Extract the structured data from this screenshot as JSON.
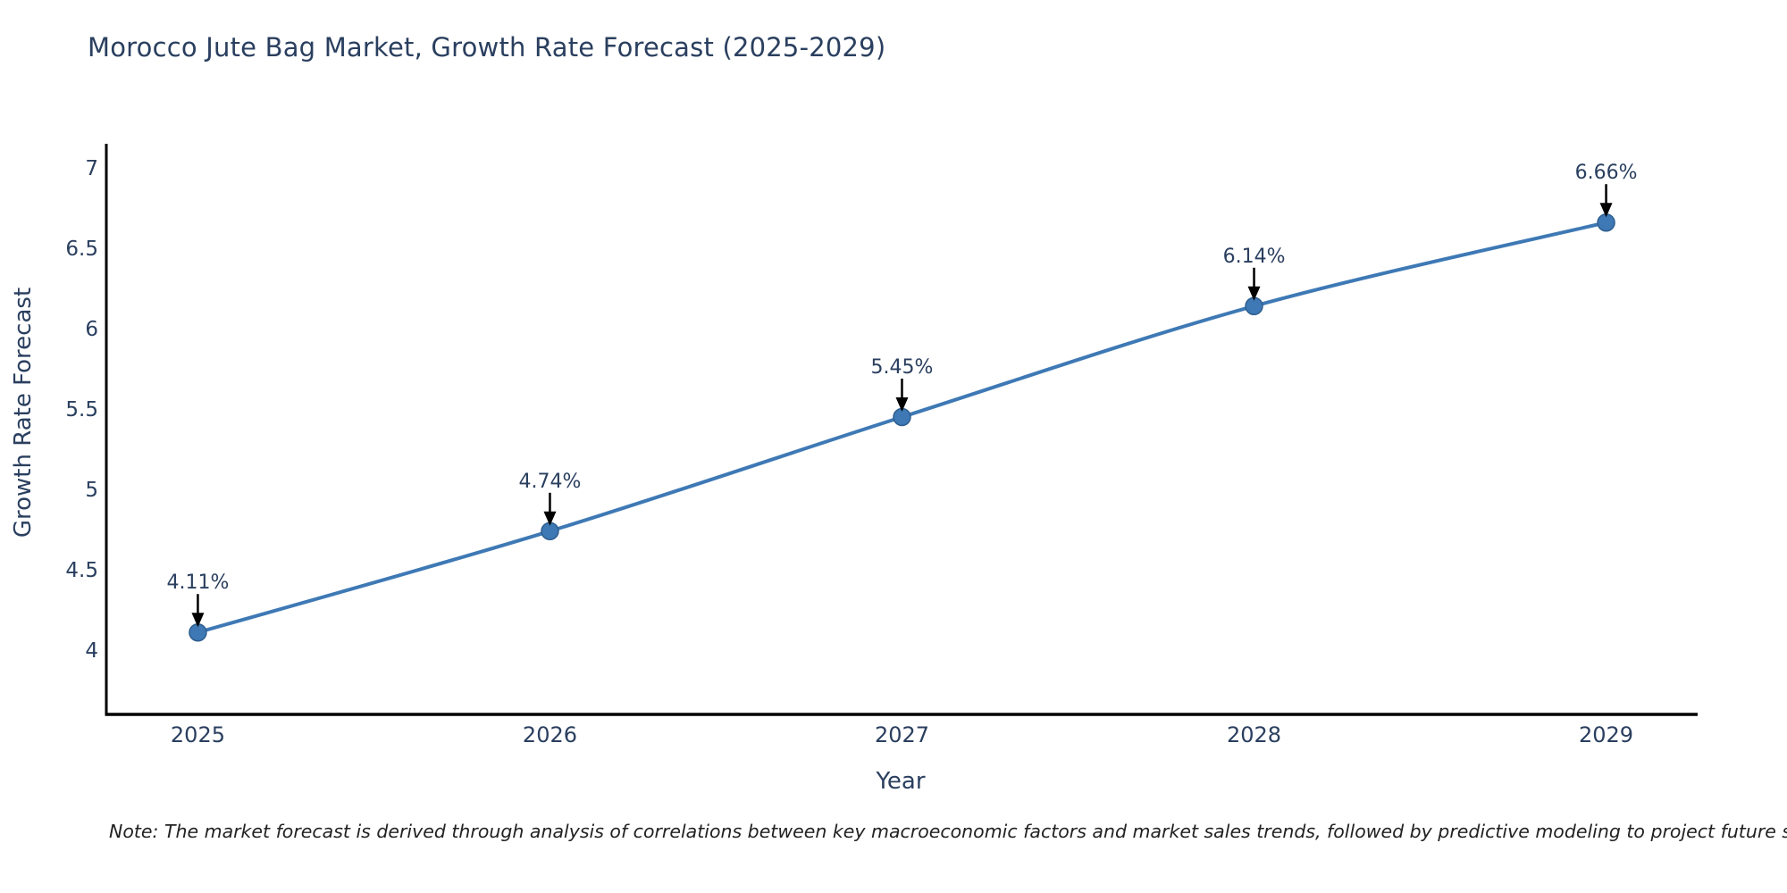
{
  "figure": {
    "note": "Note: The market forecast is derived through analysis of correlations between key macroeconomic factors and market sales trends, followed by predictive modeling to project future sales"
  },
  "chart_data": {
    "type": "line",
    "title": "Morocco Jute Bag Market, Growth Rate Forecast (2025-2029)",
    "xlabel": "Year",
    "ylabel": "Growth Rate Forecast",
    "x": [
      2025,
      2026,
      2027,
      2028,
      2029
    ],
    "series": [
      {
        "name": "Growth Rate Forecast",
        "values": [
          4.11,
          4.74,
          5.45,
          6.14,
          6.66
        ]
      }
    ],
    "point_labels": [
      "4.11%",
      "4.74%",
      "5.45%",
      "6.14%",
      "6.66%"
    ],
    "x_ticks": [
      "2025",
      "2026",
      "2027",
      "2028",
      "2029"
    ],
    "y_ticks": [
      4,
      4.5,
      5,
      5.5,
      6,
      6.5,
      7
    ],
    "xlim": [
      2024.74,
      2029.26
    ],
    "ylim": [
      3.6,
      7.15
    ],
    "grid": false,
    "legend": false,
    "line_shape": "spline",
    "colors": {
      "line": "#3E79B5",
      "marker": "#3E79B5",
      "marker_edge": "#2E5E8F",
      "axis": "#000000",
      "text": "#2a3f5f",
      "annotation_arrow": "#000000"
    }
  }
}
